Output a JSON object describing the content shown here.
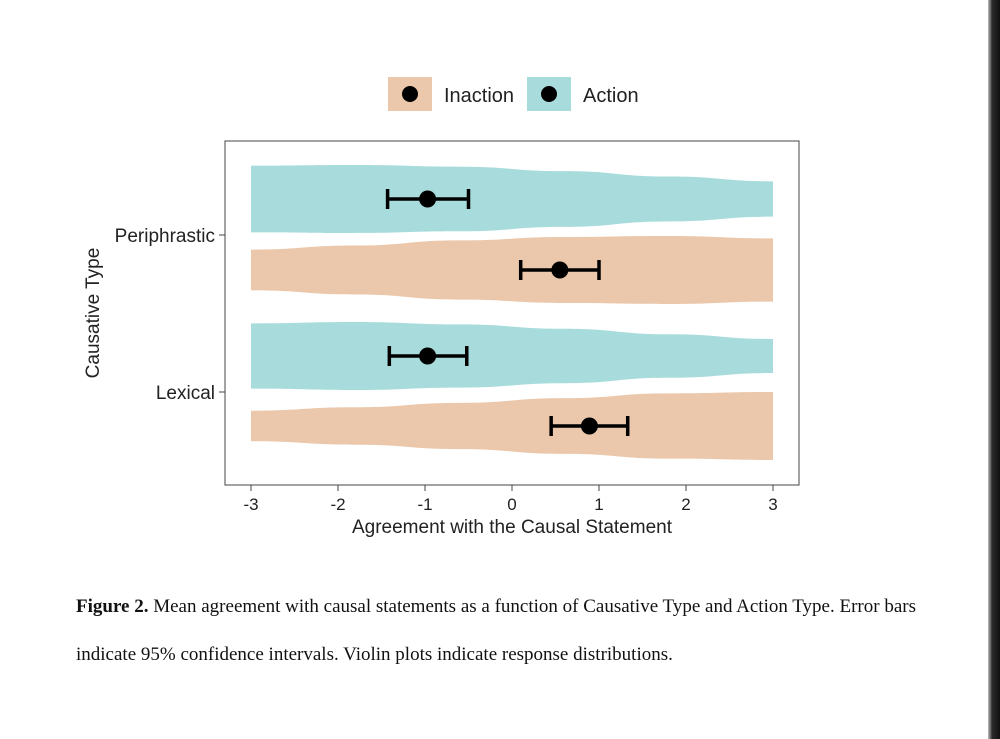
{
  "chart_data": {
    "type": "violin",
    "legend": {
      "position": "top",
      "entries": [
        {
          "name": "Inaction",
          "color": "#ebc8ab"
        },
        {
          "name": "Action",
          "color": "#a8dcdc"
        }
      ]
    },
    "xlabel": "Agreement with the Causal Statement",
    "ylabel": "Causative Type",
    "xlim": [
      -3,
      3
    ],
    "xticks": [
      "-3",
      "-2",
      "-1",
      "0",
      "1",
      "2",
      "3"
    ],
    "categories": [
      "Periphrastic",
      "Lexical"
    ],
    "series": [
      {
        "name": "Action",
        "color": "#a8dcdc",
        "points": [
          {
            "category": "Periphrastic",
            "mean": -0.97,
            "ci": [
              -1.43,
              -0.5
            ],
            "violin_half_width": [
              0.98,
              1.0,
              0.95,
              0.82,
              0.66,
              0.52
            ]
          },
          {
            "category": "Lexical",
            "mean": -0.97,
            "ci": [
              -1.41,
              -0.52
            ],
            "violin_half_width": [
              0.96,
              1.0,
              0.93,
              0.8,
              0.64,
              0.5
            ]
          }
        ]
      },
      {
        "name": "Inaction",
        "color": "#ebc8ab",
        "points": [
          {
            "category": "Periphrastic",
            "mean": 0.55,
            "ci": [
              0.1,
              1.0
            ],
            "violin_half_width": [
              0.6,
              0.72,
              0.87,
              0.97,
              1.0,
              0.93
            ]
          },
          {
            "category": "Lexical",
            "mean": 0.89,
            "ci": [
              0.45,
              1.33
            ],
            "violin_half_width": [
              0.45,
              0.55,
              0.68,
              0.82,
              0.96,
              1.0
            ]
          }
        ]
      }
    ]
  },
  "caption": {
    "label": "Figure 2.",
    "text": " Mean agreement with causal statements as a function of Causative Type and Action Type. Error bars indicate 95% confidence intervals. Violin plots indicate response distributions."
  }
}
